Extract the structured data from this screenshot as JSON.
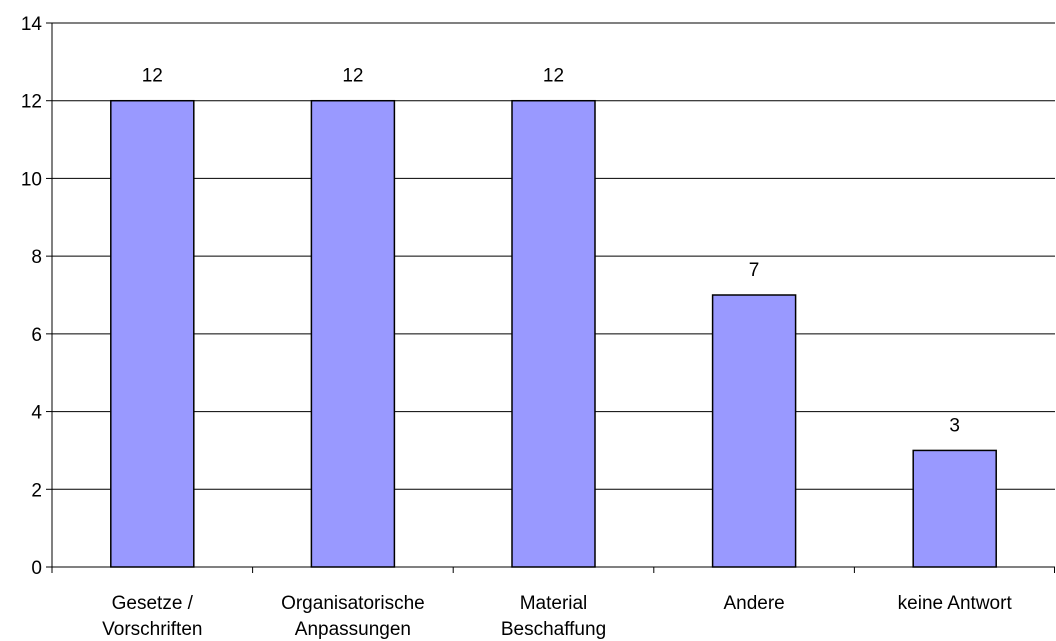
{
  "chart_data": {
    "type": "bar",
    "categories": [
      [
        "Gesetze /",
        "Vorschriften"
      ],
      [
        "Organisatorische",
        "Anpassungen"
      ],
      [
        "Material",
        "Beschaffung"
      ],
      [
        "Andere"
      ],
      [
        "keine Antwort"
      ]
    ],
    "values": [
      12,
      12,
      12,
      7,
      3
    ],
    "data_labels": [
      "12",
      "12",
      "12",
      "7",
      "3"
    ],
    "title": "",
    "xlabel": "",
    "ylabel": "",
    "ylim": [
      0,
      14
    ],
    "yticks": [
      0,
      2,
      4,
      6,
      8,
      10,
      12,
      14
    ],
    "grid": true,
    "legend": "none",
    "colors": {
      "bar_fill": "#9999ff",
      "bar_stroke": "#000000",
      "grid": "#000000",
      "axis": "#000000"
    }
  }
}
